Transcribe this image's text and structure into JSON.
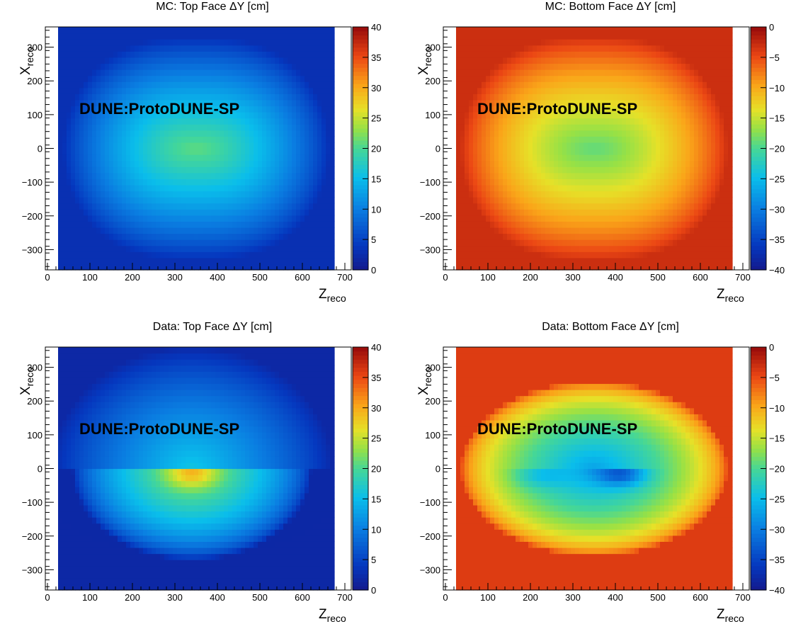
{
  "chart_data": [
    {
      "type": "heatmap",
      "title": "MC:  Top Face ΔY [cm]",
      "xlabel_main": "Z",
      "xlabel_sub": "reco",
      "ylabel_main": "X",
      "ylabel_sub": "reco",
      "annotation": "DUNE:ProtoDUNE-SP",
      "xlim": [
        -5,
        715
      ],
      "ylim": [
        -360,
        360
      ],
      "data_x_range": [
        25,
        675
      ],
      "xticks": [
        "0",
        "100",
        "200",
        "300",
        "400",
        "500",
        "600",
        "700"
      ],
      "yticks": [
        "−300",
        "−200",
        "−100",
        "0",
        "100",
        "200",
        "300"
      ],
      "zlim": [
        0,
        40
      ],
      "zticks": [
        "0",
        "5",
        "10",
        "15",
        "20",
        "25",
        "30",
        "35",
        "40"
      ],
      "colormap": "rainbow",
      "pattern": {
        "kind": "mc",
        "zmin": 3,
        "zmax": 21,
        "zc": 350,
        "xc": 0
      }
    },
    {
      "type": "heatmap",
      "title": "MC:  Bottom Face ΔY [cm]",
      "xlabel_main": "Z",
      "xlabel_sub": "reco",
      "ylabel_main": "X",
      "ylabel_sub": "reco",
      "annotation": "DUNE:ProtoDUNE-SP",
      "xlim": [
        -5,
        715
      ],
      "ylim": [
        -360,
        360
      ],
      "data_x_range": [
        25,
        675
      ],
      "xticks": [
        "0",
        "100",
        "200",
        "300",
        "400",
        "500",
        "600",
        "700"
      ],
      "yticks": [
        "−300",
        "−200",
        "−100",
        "0",
        "100",
        "200",
        "300"
      ],
      "zlim": [
        -40,
        0
      ],
      "zticks": [
        "0",
        "−5",
        "−10",
        "−15",
        "−20",
        "−25",
        "−30",
        "−35",
        "−40"
      ],
      "colormap": "rainbow",
      "pattern": {
        "kind": "mc",
        "zmin": -3,
        "zmax": -19,
        "zc": 350,
        "xc": 0
      }
    },
    {
      "type": "heatmap",
      "title": "Data:  Top Face ΔY [cm]",
      "xlabel_main": "Z",
      "xlabel_sub": "reco",
      "ylabel_main": "X",
      "ylabel_sub": "reco",
      "annotation": "DUNE:ProtoDUNE-SP",
      "xlim": [
        -5,
        715
      ],
      "ylim": [
        -360,
        360
      ],
      "data_x_range": [
        25,
        675
      ],
      "xticks": [
        "0",
        "100",
        "200",
        "300",
        "400",
        "500",
        "600",
        "700"
      ],
      "yticks": [
        "−300",
        "−200",
        "−100",
        "0",
        "100",
        "200",
        "300"
      ],
      "zlim": [
        0,
        40
      ],
      "zticks": [
        "0",
        "5",
        "10",
        "15",
        "20",
        "25",
        "30",
        "35",
        "40"
      ],
      "colormap": "rainbow",
      "pattern": {
        "kind": "data-top",
        "upper_max": 16,
        "lower_max": 30,
        "lower_edge": 24,
        "zc": 340,
        "xc": 0
      }
    },
    {
      "type": "heatmap",
      "title": "Data:  Bottom Face ΔY [cm]",
      "xlabel_main": "Z",
      "xlabel_sub": "reco",
      "ylabel_main": "X",
      "ylabel_sub": "reco",
      "annotation": "DUNE:ProtoDUNE-SP",
      "xlim": [
        -5,
        715
      ],
      "ylim": [
        -360,
        360
      ],
      "data_x_range": [
        25,
        675
      ],
      "xticks": [
        "0",
        "100",
        "200",
        "300",
        "400",
        "500",
        "600",
        "700"
      ],
      "yticks": [
        "−300",
        "−200",
        "−100",
        "0",
        "100",
        "200",
        "300"
      ],
      "zlim": [
        -40,
        0
      ],
      "zticks": [
        "0",
        "−5",
        "−10",
        "−15",
        "−20",
        "−25",
        "−30",
        "−35",
        "−40"
      ],
      "colormap": "rainbow",
      "pattern": {
        "kind": "data-bottom",
        "edge": -4,
        "ring": -16,
        "center": -27,
        "core": -36,
        "zc": 350,
        "xc": 0
      }
    }
  ]
}
